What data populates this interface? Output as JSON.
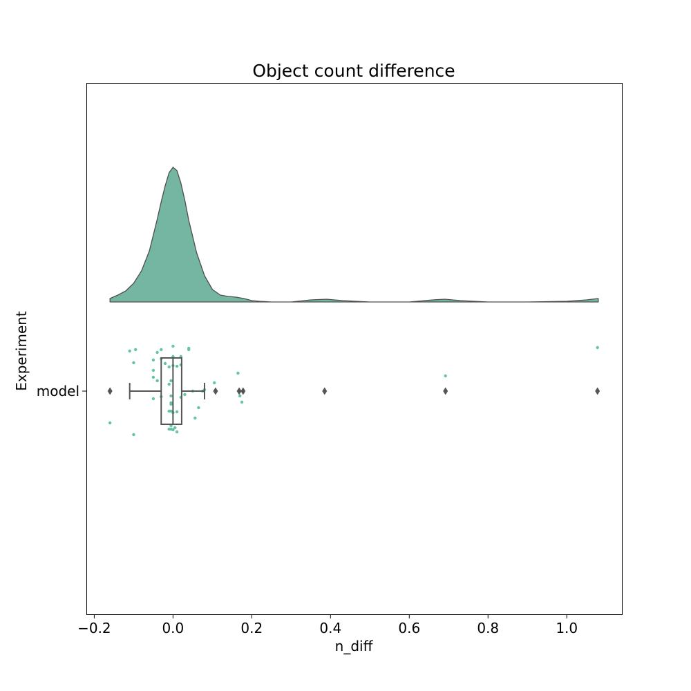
{
  "chart_data": {
    "type": "raincloud",
    "title": "Object count difference",
    "xlabel": "n_diff",
    "ylabel": "Experiment",
    "xlim": [
      -0.22,
      1.14
    ],
    "xticks": [
      -0.2,
      0.0,
      0.2,
      0.4,
      0.6,
      0.8,
      1.0
    ],
    "xtick_labels": [
      "−0.2",
      "0.0",
      "0.2",
      "0.4",
      "0.6",
      "0.8",
      "1.0"
    ],
    "categories": [
      "model"
    ],
    "grid": false,
    "colors": {
      "fill": "#74b6a1",
      "edge": "#4d4d4d",
      "point": "#66c2a5",
      "box": "#555555"
    },
    "density": {
      "x": [
        -0.16,
        -0.14,
        -0.12,
        -0.1,
        -0.08,
        -0.06,
        -0.04,
        -0.03,
        -0.02,
        -0.01,
        0.0,
        0.01,
        0.02,
        0.03,
        0.04,
        0.06,
        0.08,
        0.1,
        0.12,
        0.14,
        0.16,
        0.18,
        0.2,
        0.22,
        0.25,
        0.3,
        0.35,
        0.39,
        0.43,
        0.5,
        0.6,
        0.66,
        0.69,
        0.73,
        0.8,
        0.9,
        1.0,
        1.05,
        1.08
      ],
      "density": [
        0.05,
        0.1,
        0.16,
        0.27,
        0.45,
        0.74,
        1.2,
        1.45,
        1.68,
        1.87,
        1.95,
        1.9,
        1.72,
        1.47,
        1.18,
        0.71,
        0.38,
        0.18,
        0.1,
        0.08,
        0.07,
        0.05,
        0.02,
        0.01,
        0.0,
        0.0,
        0.03,
        0.04,
        0.02,
        0.0,
        0.0,
        0.03,
        0.04,
        0.02,
        0.0,
        0.0,
        0.01,
        0.03,
        0.05
      ]
    },
    "box": {
      "whisker_low": -0.11,
      "q1": -0.03,
      "median": 0.0,
      "q3": 0.022,
      "whisker_high": 0.08,
      "outliers": [
        -0.16,
        0.108,
        0.168,
        0.178,
        0.385,
        0.692,
        1.078
      ]
    },
    "points": [
      {
        "x": -0.11,
        "y": 0.58
      },
      {
        "x": -0.1,
        "y": 0.41
      },
      {
        "x": -0.095,
        "y": 0.6
      },
      {
        "x": -0.16,
        "y": -0.46
      },
      {
        "x": -0.1,
        "y": -0.63
      },
      {
        "x": -0.05,
        "y": 0.45
      },
      {
        "x": -0.05,
        "y": 0.3
      },
      {
        "x": -0.05,
        "y": 0.2
      },
      {
        "x": -0.05,
        "y": -0.11
      },
      {
        "x": -0.04,
        "y": 0.56
      },
      {
        "x": -0.04,
        "y": 0.15
      },
      {
        "x": -0.03,
        "y": 0.47
      },
      {
        "x": -0.03,
        "y": -0.08
      },
      {
        "x": -0.03,
        "y": 0.6
      },
      {
        "x": -0.02,
        "y": 0.4
      },
      {
        "x": -0.01,
        "y": 0.35
      },
      {
        "x": -0.01,
        "y": 0.1
      },
      {
        "x": -0.01,
        "y": -0.29
      },
      {
        "x": 0.0,
        "y": 0.65
      },
      {
        "x": 0.0,
        "y": 0.5
      },
      {
        "x": 0.0,
        "y": 0.37
      },
      {
        "x": -0.005,
        "y": 0.15
      },
      {
        "x": -0.005,
        "y": -0.07
      },
      {
        "x": -0.005,
        "y": -0.17
      },
      {
        "x": -0.005,
        "y": -0.19
      },
      {
        "x": -0.005,
        "y": -0.29
      },
      {
        "x": 0.0,
        "y": -0.31
      },
      {
        "x": -0.005,
        "y": -0.5
      },
      {
        "x": 0.005,
        "y": -0.53
      },
      {
        "x": -0.005,
        "y": -0.55
      },
      {
        "x": 0.0,
        "y": -0.56
      },
      {
        "x": 0.01,
        "y": -0.59
      },
      {
        "x": -0.01,
        "y": -0.55
      },
      {
        "x": 0.01,
        "y": 0.36
      },
      {
        "x": 0.02,
        "y": 0.5
      },
      {
        "x": 0.02,
        "y": 0.38
      },
      {
        "x": 0.02,
        "y": -0.09
      },
      {
        "x": 0.01,
        "y": -0.3
      },
      {
        "x": 0.03,
        "y": -0.05
      },
      {
        "x": 0.04,
        "y": 0.6
      },
      {
        "x": 0.04,
        "y": 0.62
      },
      {
        "x": 0.05,
        "y": 0.0
      },
      {
        "x": 0.056,
        "y": -0.39
      },
      {
        "x": 0.065,
        "y": -0.24
      },
      {
        "x": 0.075,
        "y": 0.0
      },
      {
        "x": 0.08,
        "y": 0.02
      },
      {
        "x": 0.105,
        "y": 0.12
      },
      {
        "x": 0.165,
        "y": 0.26
      },
      {
        "x": 0.17,
        "y": -0.07
      },
      {
        "x": 0.175,
        "y": -0.16
      },
      {
        "x": 0.692,
        "y": 0.22
      },
      {
        "x": 1.078,
        "y": 0.63
      }
    ]
  }
}
